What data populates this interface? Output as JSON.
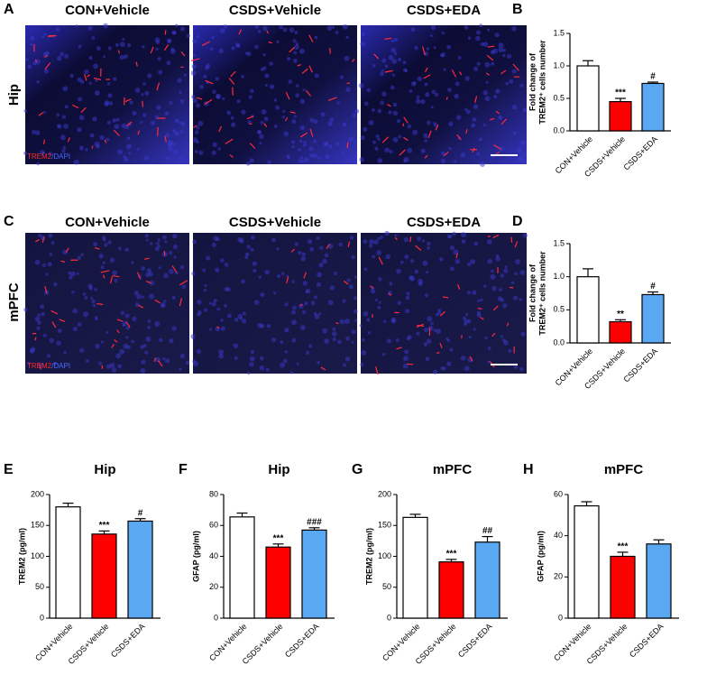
{
  "panel_labels": [
    "A",
    "C"
  ],
  "image_rows": [
    {
      "label": "Hip",
      "titles": [
        "CON+Vehicle",
        "CSDS+Vehicle",
        "CSDS+EDA"
      ],
      "stain": [
        "TREM2",
        "/DAPI"
      ]
    },
    {
      "label": "mPFC",
      "titles": [
        "CON+Vehicle",
        "CSDS+Vehicle",
        "CSDS+EDA"
      ],
      "stain": [
        "TREM2",
        "/DAPI"
      ]
    }
  ],
  "chart_data": [
    {
      "type": "bar",
      "panel": "B",
      "ylabel": [
        "Fold change of",
        "TREM2⁺ cells number"
      ],
      "categories": [
        "CON+Vehicle",
        "CSDS+Vehicle",
        "CSDS+EDA"
      ],
      "values": [
        1.0,
        0.45,
        0.73
      ],
      "errors": [
        0.08,
        0.05,
        0.02
      ],
      "annotations": [
        null,
        "***",
        "#"
      ],
      "colors": [
        "#ffffff",
        "#ff0000",
        "#5aa8f2"
      ],
      "ylim": [
        0,
        1.5
      ],
      "yticks": [
        {
          "value": 0,
          "label": "0.0"
        },
        0.5,
        {
          "value": 1,
          "label": "1.0"
        },
        1.5
      ]
    },
    {
      "type": "bar",
      "panel": "D",
      "ylabel": [
        "Fold change of",
        "TREM2⁺ cells number"
      ],
      "categories": [
        "CON+Vehicle",
        "CSDS+Vehicle",
        "CSDS+EDA"
      ],
      "values": [
        1.0,
        0.32,
        0.73
      ],
      "errors": [
        0.12,
        0.03,
        0.04
      ],
      "annotations": [
        null,
        "**",
        "#"
      ],
      "colors": [
        "#ffffff",
        "#ff0000",
        "#5aa8f2"
      ],
      "ylim": [
        0,
        1.5
      ],
      "yticks": [
        {
          "value": 0,
          "label": "0.0"
        },
        0.5,
        {
          "value": 1,
          "label": "1.0"
        },
        1.5
      ]
    },
    {
      "type": "bar",
      "panel": "E",
      "title": "Hip",
      "ylabel": [
        "TREM2 (pg/ml)"
      ],
      "categories": [
        "CON+Vehicle",
        "CSDS+Vehicle",
        "CSDS+EDA"
      ],
      "values": [
        180,
        136,
        157
      ],
      "errors": [
        6,
        5,
        4
      ],
      "annotations": [
        null,
        "***",
        "#"
      ],
      "colors": [
        "#ffffff",
        "#ff0000",
        "#5aa8f2"
      ],
      "ylim": [
        0,
        200
      ],
      "yticks": [
        0,
        50,
        100,
        150,
        200
      ]
    },
    {
      "type": "bar",
      "panel": "F",
      "title": "Hip",
      "ylabel": [
        "GFAP (pg/ml)"
      ],
      "categories": [
        "CON+Vehicle",
        "CSDS+Vehicle",
        "CSDS+EDA"
      ],
      "values": [
        65.5,
        46,
        57
      ],
      "errors": [
        2.5,
        2,
        1.5
      ],
      "annotations": [
        null,
        "***",
        "###"
      ],
      "colors": [
        "#ffffff",
        "#ff0000",
        "#5aa8f2"
      ],
      "ylim": [
        0,
        80
      ],
      "yticks": [
        0,
        20,
        40,
        60,
        80
      ]
    },
    {
      "type": "bar",
      "panel": "G",
      "title": "mPFC",
      "ylabel": [
        "TREM2 (pg/ml)"
      ],
      "categories": [
        "CON+Vehicle",
        "CSDS+Vehicle",
        "CSDS+EDA"
      ],
      "values": [
        163,
        91,
        123
      ],
      "errors": [
        5,
        4,
        9
      ],
      "annotations": [
        null,
        "***",
        "##"
      ],
      "colors": [
        "#ffffff",
        "#ff0000",
        "#5aa8f2"
      ],
      "ylim": [
        0,
        200
      ],
      "yticks": [
        0,
        50,
        100,
        150,
        200
      ]
    },
    {
      "type": "bar",
      "panel": "H",
      "title": "mPFC",
      "ylabel": [
        "GFAP (pg/ml)"
      ],
      "categories": [
        "CON+Vehicle",
        "CSDS+Vehicle",
        "CSDS+EDA"
      ],
      "values": [
        54.5,
        30,
        36
      ],
      "errors": [
        2,
        2,
        2
      ],
      "annotations": [
        null,
        "***",
        null
      ],
      "colors": [
        "#ffffff",
        "#ff0000",
        "#5aa8f2"
      ],
      "ylim": [
        0,
        60
      ],
      "yticks": [
        0,
        20,
        40,
        60
      ]
    }
  ]
}
